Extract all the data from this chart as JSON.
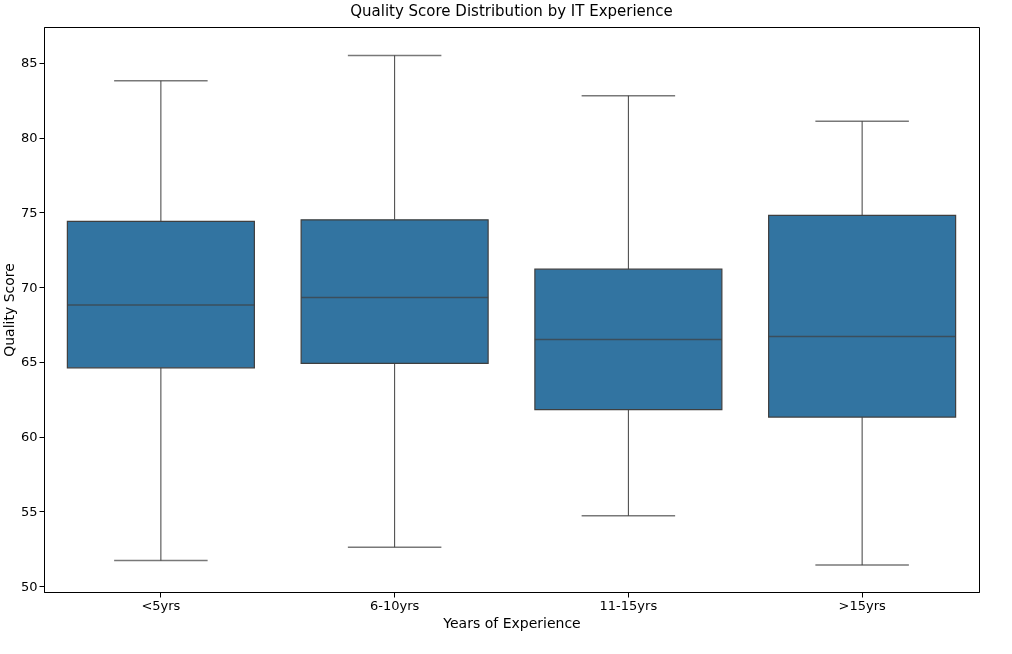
{
  "chart_data": {
    "type": "box",
    "title": "Quality Score Distribution by IT Experience",
    "xlabel": "Years of Experience",
    "ylabel": "Quality Score",
    "categories": [
      "<5yrs",
      "6-10yrs",
      "11-15yrs",
      ">15yrs"
    ],
    "boxes": [
      {
        "low": 51.7,
        "q1": 64.6,
        "median": 68.8,
        "q3": 74.4,
        "high": 83.8
      },
      {
        "low": 52.6,
        "q1": 64.9,
        "median": 69.3,
        "q3": 74.5,
        "high": 85.5
      },
      {
        "low": 54.7,
        "q1": 61.8,
        "median": 66.5,
        "q3": 71.2,
        "high": 82.8
      },
      {
        "low": 51.4,
        "q1": 61.3,
        "median": 66.7,
        "q3": 74.8,
        "high": 81.1
      }
    ],
    "color": "#3274a1",
    "ylim": [
      49.6,
      87.4
    ],
    "yticks": [
      50,
      55,
      60,
      65,
      70,
      75,
      80,
      85
    ],
    "grid": false
  }
}
